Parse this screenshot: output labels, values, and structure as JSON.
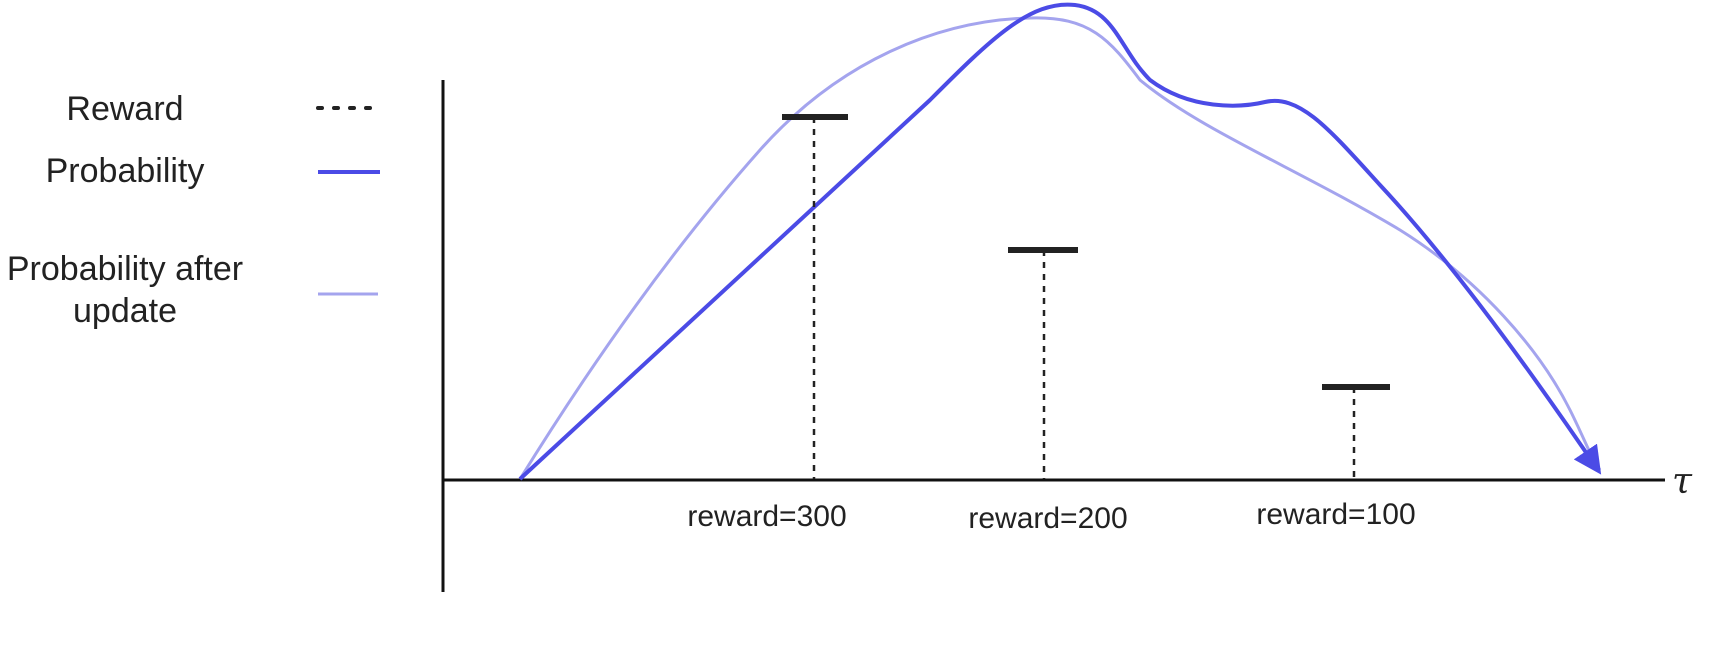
{
  "colors": {
    "axis": "#111111",
    "reward": "#222222",
    "probability": "#4b4be6",
    "probability_after": "#a4a4ee"
  },
  "legend": {
    "items": [
      {
        "label": "Reward",
        "style": "dotted-black"
      },
      {
        "label": "Probability",
        "style": "solid-blue"
      },
      {
        "label_line1": "Probability after",
        "label_line2": "update",
        "style": "solid-light-blue"
      }
    ]
  },
  "axis": {
    "x_label": "τ"
  },
  "rewards": [
    {
      "label": "reward=300",
      "value": 300
    },
    {
      "label": "reward=200",
      "value": 200
    },
    {
      "label": "reward=100",
      "value": 100
    }
  ],
  "curves": {
    "probability": {
      "name": "Probability",
      "arrow_end": true
    },
    "probability_after": {
      "name": "Probability after update"
    }
  }
}
